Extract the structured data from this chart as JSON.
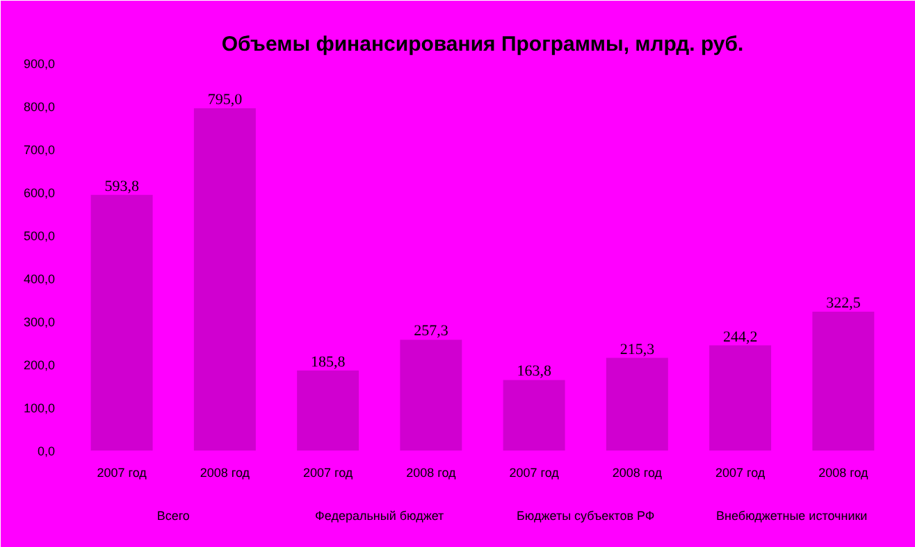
{
  "chart_data": {
    "type": "bar",
    "title": "Объемы финансирования Программы, млрд. руб.",
    "categories": [
      "2007 год",
      "2008 год",
      "2007 год",
      "2008 год",
      "2007 год",
      "2008 год",
      "2007 год",
      "2008 год"
    ],
    "values": [
      593.8,
      795.0,
      185.8,
      257.3,
      163.8,
      215.3,
      244.2,
      322.5
    ],
    "value_labels": [
      "593,8",
      "795,0",
      "185,8",
      "257,3",
      "163,8",
      "215,3",
      "244,2",
      "322,5"
    ],
    "color": "#d000d0",
    "ylim": [
      0,
      900
    ],
    "yticks": [
      {
        "value": 0,
        "label": "0,0"
      },
      {
        "value": 100,
        "label": "100,0"
      },
      {
        "value": 200,
        "label": "200,0"
      },
      {
        "value": 300,
        "label": "300,0"
      },
      {
        "value": 400,
        "label": "400,0"
      },
      {
        "value": 500,
        "label": "500,0"
      },
      {
        "value": 600,
        "label": "600,0"
      },
      {
        "value": 700,
        "label": "700,0"
      },
      {
        "value": 800,
        "label": "800,0"
      },
      {
        "value": 900,
        "label": "900,0"
      }
    ],
    "annotations": [
      "Всего",
      "Федеральный бюджет",
      "Бюджеты субъектов РФ",
      "Внебюджетные источники"
    ],
    "grid": false
  }
}
